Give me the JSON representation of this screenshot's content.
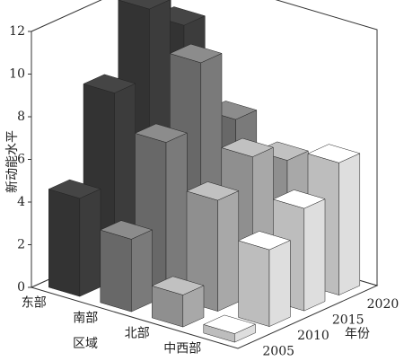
{
  "chart_data": {
    "type": "bar3d",
    "x_label": "年份",
    "y_label": "新动能水平",
    "z_label": "区域",
    "categories": [
      "2005",
      "2010",
      "2015",
      "2020"
    ],
    "series": [
      {
        "name": "东部",
        "color": "#3c3c3c",
        "values": [
          4.6,
          8.8,
          12,
          10.5
        ]
      },
      {
        "name": "南部",
        "color": "#7a7a7a",
        "values": [
          3.4,
          7.2,
          10.2,
          6.8
        ]
      },
      {
        "name": "北部",
        "color": "#a8a8a8",
        "values": [
          1.5,
          5.2,
          6.5,
          5.6
        ]
      },
      {
        "name": "中西部",
        "color": "#dedede",
        "values": [
          0.4,
          3.6,
          4.8,
          6.2
        ]
      }
    ],
    "ylim": [
      0,
      12
    ],
    "yticks": [
      0,
      2,
      4,
      6,
      8,
      10,
      12
    ]
  }
}
